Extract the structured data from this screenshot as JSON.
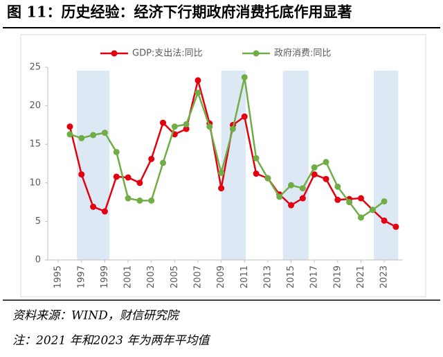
{
  "title": "图 11：历史经验：经济下行期政府消费托底作用显著",
  "chart_data": {
    "type": "line",
    "x": [
      1996,
      1997,
      1998,
      1999,
      2000,
      2001,
      2002,
      2003,
      2004,
      2005,
      2006,
      2007,
      2008,
      2009,
      2010,
      2011,
      2012,
      2013,
      2014,
      2015,
      2016,
      2017,
      2018,
      2019,
      2020,
      2021,
      2022,
      2023,
      2024
    ],
    "series": [
      {
        "name": "GDP:支出法:同比",
        "color": "#e3000f",
        "values": [
          17.3,
          11.1,
          6.9,
          6.3,
          10.8,
          10.7,
          10.0,
          13.1,
          17.8,
          16.3,
          17.0,
          23.3,
          17.7,
          9.3,
          17.5,
          18.6,
          11.2,
          10.6,
          8.5,
          7.1,
          8.0,
          11.1,
          10.5,
          7.8,
          7.9,
          8.0,
          6.5,
          5.1,
          4.3
        ]
      },
      {
        "name": "政府消费:同比",
        "color": "#70ad47",
        "values": [
          16.3,
          15.8,
          16.2,
          16.5,
          14.0,
          8.0,
          7.7,
          7.7,
          12.6,
          17.3,
          17.6,
          21.7,
          17.3,
          11.3,
          17.0,
          23.7,
          13.2,
          10.6,
          8.2,
          9.7,
          9.3,
          12.0,
          12.7,
          9.5,
          7.5,
          5.5,
          6.5,
          7.6,
          null
        ]
      }
    ],
    "xlim": [
      1994.1,
      2024.6
    ],
    "xticks": [
      1995,
      1997,
      1999,
      2001,
      2003,
      2005,
      2007,
      2009,
      2011,
      2013,
      2015,
      2017,
      2019,
      2021,
      2023
    ],
    "ylim": [
      0,
      25
    ],
    "yticks": [
      0,
      5,
      10,
      15,
      20,
      25
    ],
    "grid": false,
    "legend": "top",
    "highlight_color": "#dce8f4",
    "highlight_ranges": [
      [
        1996.6,
        1999.4
      ],
      [
        2009.0,
        2011.1
      ],
      [
        2014.3,
        2016.5
      ],
      [
        2022.1,
        2024.2
      ]
    ]
  },
  "notes": [
    "资料来源：WIND，财信研究院",
    "注：2021 年和2023 年为两年平均值"
  ]
}
